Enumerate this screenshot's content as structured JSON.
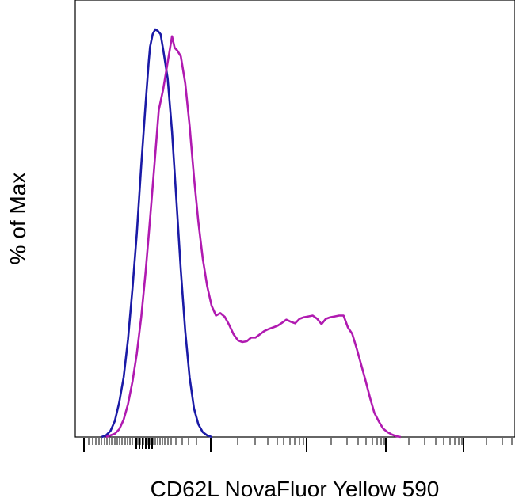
{
  "chart_data": {
    "type": "line",
    "title": "",
    "xlabel": "CD62L NovaFluor Yellow 590",
    "ylabel": "% of Max",
    "xlim": [
      0,
      100
    ],
    "ylim": [
      0,
      100
    ],
    "x_scale": "biexponential",
    "tick_labels_shown": false,
    "grid": false,
    "legend": "none",
    "series": [
      {
        "color": "#1a1aa6",
        "points": [
          [
            6,
            0
          ],
          [
            7,
            0.4
          ],
          [
            8,
            1.5
          ],
          [
            9,
            3.9
          ],
          [
            10,
            8.5
          ],
          [
            11,
            14.7
          ],
          [
            12,
            24
          ],
          [
            13,
            36.4
          ],
          [
            14,
            50
          ],
          [
            15,
            66.7
          ],
          [
            16,
            81.8
          ],
          [
            16.7,
            92
          ],
          [
            17,
            95.7
          ],
          [
            17.6,
            98.8
          ],
          [
            18.2,
            100
          ],
          [
            18.8,
            99.6
          ],
          [
            19.4,
            98.8
          ],
          [
            20,
            95
          ],
          [
            21,
            88
          ],
          [
            22,
            75
          ],
          [
            23,
            58
          ],
          [
            24,
            41
          ],
          [
            25,
            26
          ],
          [
            26,
            14.7
          ],
          [
            27,
            7
          ],
          [
            28,
            3.1
          ],
          [
            29,
            1.2
          ],
          [
            30,
            0.4
          ],
          [
            31,
            0
          ]
        ]
      },
      {
        "color": "#b01ab0",
        "points": [
          [
            7,
            0
          ],
          [
            8,
            0.4
          ],
          [
            9,
            0.8
          ],
          [
            10,
            1.9
          ],
          [
            11,
            4.3
          ],
          [
            12,
            8.1
          ],
          [
            13,
            13.6
          ],
          [
            14,
            20.5
          ],
          [
            15,
            29.5
          ],
          [
            16,
            40.5
          ],
          [
            17,
            53.5
          ],
          [
            18,
            66.7
          ],
          [
            19,
            80.2
          ],
          [
            20,
            85.3
          ],
          [
            21,
            91.9
          ],
          [
            21.5,
            95
          ],
          [
            22,
            98.3
          ],
          [
            22.6,
            95.5
          ],
          [
            23.2,
            94.8
          ],
          [
            24,
            93.4
          ],
          [
            25,
            86.8
          ],
          [
            26,
            76.4
          ],
          [
            27,
            63.6
          ],
          [
            28,
            52.7
          ],
          [
            29,
            43.8
          ],
          [
            30,
            37
          ],
          [
            31,
            32.2
          ],
          [
            32,
            29.8
          ],
          [
            33,
            30.4
          ],
          [
            34,
            29.5
          ],
          [
            35,
            27.5
          ],
          [
            36,
            25.2
          ],
          [
            37,
            23.7
          ],
          [
            38,
            23.3
          ],
          [
            39,
            23.5
          ],
          [
            40,
            24.4
          ],
          [
            41,
            24.4
          ],
          [
            42,
            25.2
          ],
          [
            43,
            26
          ],
          [
            44,
            26.5
          ],
          [
            45,
            26.9
          ],
          [
            46,
            27.3
          ],
          [
            47,
            28
          ],
          [
            48,
            28.8
          ],
          [
            49,
            28.3
          ],
          [
            50,
            27.9
          ],
          [
            51,
            29
          ],
          [
            52,
            29.4
          ],
          [
            53,
            29.6
          ],
          [
            54,
            29.8
          ],
          [
            55,
            29
          ],
          [
            56,
            27.7
          ],
          [
            57,
            29
          ],
          [
            58,
            29.4
          ],
          [
            59,
            29.6
          ],
          [
            60,
            29.8
          ],
          [
            61,
            29.8
          ],
          [
            62,
            26.9
          ],
          [
            63,
            25.3
          ],
          [
            64,
            21.7
          ],
          [
            65,
            17.8
          ],
          [
            66,
            13.9
          ],
          [
            67,
            9.7
          ],
          [
            68,
            6
          ],
          [
            69,
            3.9
          ],
          [
            70,
            2.1
          ],
          [
            71,
            1.2
          ],
          [
            72,
            0.6
          ],
          [
            73,
            0.2
          ],
          [
            74,
            0
          ]
        ]
      }
    ]
  }
}
